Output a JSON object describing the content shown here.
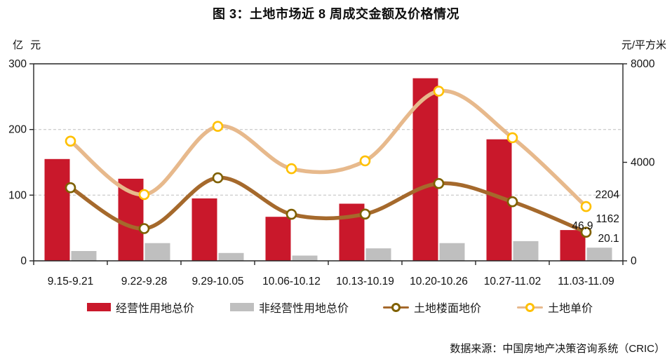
{
  "title": "图 3：土地市场近 8 周成交金额及价格情况",
  "source": "数据来源：中国房地产决策咨询系统（CRIC）",
  "chart_data": {
    "type": "combo_bar_line",
    "categories": [
      "9.15-9.21",
      "9.22-9.28",
      "9.29-10.05",
      "10.06-10.12",
      "10.13-10.19",
      "10.20-10.26",
      "10.27-11.02",
      "11.03-11.09"
    ],
    "left_axis": {
      "unit": "亿 元",
      "ticks": [
        0,
        100,
        200,
        300
      ],
      "range": [
        0,
        300
      ]
    },
    "right_axis": {
      "unit": "元/平方米",
      "ticks": [
        0,
        4000,
        8000
      ],
      "range": [
        0,
        8000
      ]
    },
    "gridlines_left_values": [
      100,
      200
    ],
    "grid_style": "dashed",
    "legend_position": "bottom",
    "series": [
      {
        "name": "经营性用地总价",
        "type": "bar",
        "axis": "left",
        "color": "#C9182B",
        "values": [
          155,
          125,
          95,
          67,
          87,
          278,
          185,
          46.9
        ],
        "end_label": "46.9"
      },
      {
        "name": "非经营性用地总价",
        "type": "bar",
        "axis": "left",
        "color": "#BFBFBF",
        "values": [
          15,
          27,
          12,
          8,
          19,
          27,
          30,
          20.1
        ],
        "end_label": "20.1"
      },
      {
        "name": "土地楼面地价",
        "type": "line",
        "axis": "right",
        "color": "#A5692C",
        "marker_stroke": "#7F6000",
        "values": [
          2970,
          1310,
          3370,
          1890,
          1900,
          3140,
          2400,
          1162
        ],
        "end_label": "1162"
      },
      {
        "name": "土地单价",
        "type": "line",
        "axis": "right",
        "color": "#E7B98C",
        "marker_stroke": "#FFC000",
        "values": [
          4860,
          2690,
          5460,
          3740,
          4060,
          6890,
          5000,
          2204
        ],
        "end_label": "2204"
      }
    ]
  }
}
